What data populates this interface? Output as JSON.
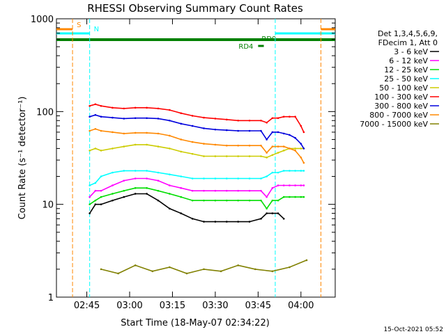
{
  "chart_data": {
    "type": "line",
    "title": "RHESSI Observing Summary Count Rates",
    "xlabel": "Start Time (18-May-07 02:34:22)",
    "ylabel": "Count Rate (s⁻¹ detector⁻¹)",
    "yscale": "log",
    "ylim": [
      1,
      1000
    ],
    "xlim": [
      "02:34:22",
      "04:12:00"
    ],
    "grid": false,
    "legend_position": "right",
    "x_ticks": [
      "02:45",
      "03:00",
      "03:15",
      "03:30",
      "03:45",
      "04:00"
    ],
    "y_ticks": [
      "1",
      "10",
      "100",
      "1000"
    ],
    "legend_header": [
      "Det 1,3,4,5,6,9,",
      "FDecim 1, Att 0"
    ],
    "time_stamp": "15-Oct-2021 05:52",
    "series": [
      {
        "name": "3 - 6 keV",
        "color": "#000000",
        "x": [
          "02:42",
          "02:44",
          "02:46",
          "02:48",
          "02:50",
          "02:54",
          "02:58",
          "03:02",
          "03:06",
          "03:10",
          "03:14",
          "03:18",
          "03:22",
          "03:26",
          "03:30",
          "03:34",
          "03:38",
          "03:42",
          "03:46",
          "03:48",
          "03:50",
          "03:52",
          "03:54"
        ],
        "y": [
          null,
          null,
          8,
          10,
          10,
          11,
          12,
          13,
          13,
          11,
          9,
          8,
          7,
          6.5,
          6.5,
          6.5,
          6.5,
          6.5,
          7,
          8,
          8,
          8,
          7
        ]
      },
      {
        "name": "6 - 12 keV",
        "color": "#ff00ff",
        "x": [
          "02:46",
          "02:48",
          "02:50",
          "02:54",
          "02:58",
          "03:02",
          "03:06",
          "03:10",
          "03:14",
          "03:18",
          "03:22",
          "03:26",
          "03:30",
          "03:34",
          "03:38",
          "03:42",
          "03:46",
          "03:48",
          "03:50",
          "03:52",
          "03:54",
          "03:56",
          "03:58",
          "04:00",
          "04:01"
        ],
        "y": [
          12,
          14,
          14,
          16,
          18,
          19,
          19,
          18,
          16,
          15,
          14,
          14,
          14,
          14,
          14,
          14,
          14,
          12,
          15,
          16,
          16,
          16,
          16,
          16,
          16
        ]
      },
      {
        "name": "12 - 25 keV",
        "color": "#00dd00",
        "x": [
          "02:46",
          "02:48",
          "02:50",
          "02:54",
          "02:58",
          "03:02",
          "03:06",
          "03:10",
          "03:14",
          "03:18",
          "03:22",
          "03:26",
          "03:30",
          "03:34",
          "03:38",
          "03:42",
          "03:46",
          "03:48",
          "03:50",
          "03:52",
          "03:54",
          "03:56",
          "03:58",
          "04:00",
          "04:01"
        ],
        "y": [
          10,
          11,
          12,
          13,
          14,
          15,
          15,
          14,
          13,
          12,
          11,
          11,
          11,
          11,
          11,
          11,
          11,
          9,
          11,
          11,
          12,
          12,
          12,
          12,
          12
        ]
      },
      {
        "name": "25 - 50 keV",
        "color": "#00ffff",
        "x": [
          "02:46",
          "02:48",
          "02:50",
          "02:54",
          "02:58",
          "03:02",
          "03:06",
          "03:10",
          "03:14",
          "03:18",
          "03:22",
          "03:26",
          "03:30",
          "03:34",
          "03:38",
          "03:42",
          "03:46",
          "03:48",
          "03:50",
          "03:52",
          "03:54",
          "03:56",
          "03:58",
          "04:00",
          "04:01"
        ],
        "y": [
          16,
          17,
          20,
          22,
          23,
          23,
          23,
          22,
          21,
          20,
          19,
          19,
          19,
          19,
          19,
          19,
          19,
          20,
          22,
          22,
          23,
          23,
          23,
          23,
          23
        ]
      },
      {
        "name": "50 - 100 keV",
        "color": "#cccc00",
        "x": [
          "02:46",
          "02:48",
          "02:50",
          "02:54",
          "02:58",
          "03:02",
          "03:06",
          "03:10",
          "03:14",
          "03:18",
          "03:22",
          "03:26",
          "03:30",
          "03:34",
          "03:38",
          "03:42",
          "03:46",
          "03:48",
          "03:50",
          "03:52",
          "03:54",
          "03:56",
          "03:58",
          "04:00",
          "04:01"
        ],
        "y": [
          38,
          40,
          38,
          40,
          42,
          44,
          44,
          42,
          40,
          37,
          35,
          33,
          33,
          33,
          33,
          33,
          33,
          32,
          34,
          36,
          38,
          40,
          40,
          40,
          40
        ]
      },
      {
        "name": "100 - 300 keV",
        "color": "#ff0000",
        "x": [
          "02:46",
          "02:48",
          "02:50",
          "02:54",
          "02:58",
          "03:02",
          "03:06",
          "03:10",
          "03:14",
          "03:18",
          "03:22",
          "03:26",
          "03:30",
          "03:34",
          "03:38",
          "03:42",
          "03:46",
          "03:48",
          "03:50",
          "03:52",
          "03:54",
          "03:56",
          "03:58",
          "04:00",
          "04:01"
        ],
        "y": [
          115,
          120,
          115,
          110,
          108,
          110,
          110,
          108,
          104,
          96,
          90,
          86,
          84,
          82,
          80,
          80,
          80,
          76,
          85,
          85,
          88,
          88,
          88,
          70,
          60
        ]
      },
      {
        "name": "300 - 800 keV",
        "color": "#0000dd",
        "x": [
          "02:46",
          "02:48",
          "02:50",
          "02:54",
          "02:58",
          "03:02",
          "03:06",
          "03:10",
          "03:14",
          "03:18",
          "03:22",
          "03:26",
          "03:30",
          "03:34",
          "03:38",
          "03:42",
          "03:46",
          "03:48",
          "03:50",
          "03:52",
          "03:54",
          "03:56",
          "03:58",
          "04:00",
          "04:01"
        ],
        "y": [
          88,
          92,
          88,
          86,
          84,
          85,
          85,
          84,
          80,
          74,
          70,
          66,
          64,
          63,
          62,
          62,
          62,
          50,
          60,
          60,
          58,
          56,
          52,
          45,
          40
        ]
      },
      {
        "name": "800 - 7000 keV",
        "color": "#ff8800",
        "x": [
          "02:46",
          "02:48",
          "02:50",
          "02:54",
          "02:58",
          "03:02",
          "03:06",
          "03:10",
          "03:14",
          "03:18",
          "03:22",
          "03:26",
          "03:30",
          "03:34",
          "03:38",
          "03:42",
          "03:46",
          "03:48",
          "03:50",
          "03:52",
          "03:54",
          "03:56",
          "03:58",
          "04:00",
          "04:01"
        ],
        "y": [
          62,
          65,
          62,
          60,
          58,
          59,
          59,
          58,
          55,
          50,
          47,
          45,
          44,
          43,
          43,
          43,
          43,
          36,
          42,
          42,
          42,
          40,
          38,
          32,
          28
        ]
      },
      {
        "name": "7000 - 15000 keV",
        "color": "#808000",
        "x": [
          "02:50",
          "02:56",
          "03:02",
          "03:08",
          "03:14",
          "03:20",
          "03:26",
          "03:32",
          "03:38",
          "03:44",
          "03:50",
          "03:56",
          "04:02"
        ],
        "y": [
          2,
          1.8,
          2.2,
          1.9,
          2.1,
          1.8,
          2,
          1.9,
          2.2,
          2,
          1.9,
          2.1,
          2.5
        ]
      }
    ],
    "flags": [
      {
        "label": "S",
        "color": "#ff8800",
        "intervals": [
          [
            "02:34:22",
            "02:40"
          ],
          [
            "04:07",
            "04:12"
          ]
        ]
      },
      {
        "label": "N",
        "color": "#00ffff",
        "intervals": [
          [
            "02:34:22",
            "02:46"
          ],
          [
            "03:51",
            "04:12"
          ]
        ]
      },
      {
        "label": "RD0",
        "color": "#008000",
        "intervals": [
          [
            "02:34:22",
            "04:12"
          ]
        ]
      },
      {
        "label": "RD4",
        "color": "#008000",
        "intervals": [
          [
            "03:45",
            "03:47"
          ]
        ]
      }
    ]
  }
}
